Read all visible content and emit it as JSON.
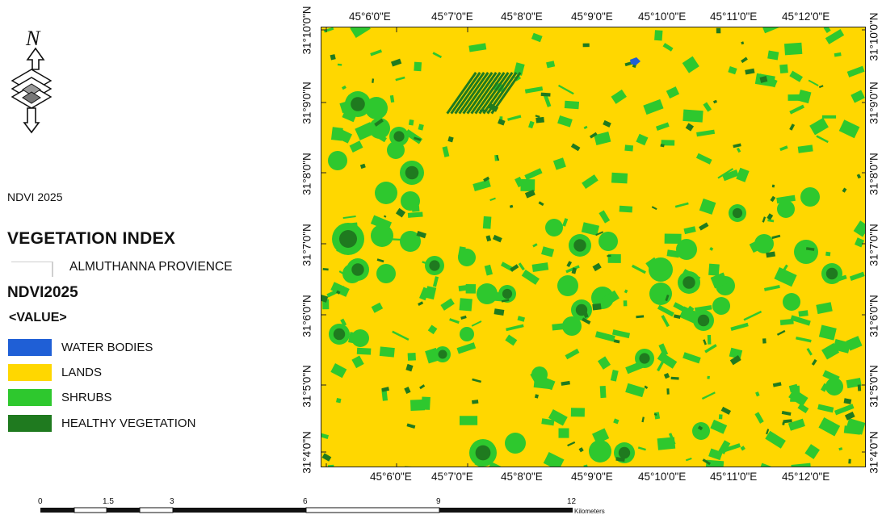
{
  "north_arrow": {
    "letter": "N",
    "icon": "north-arrow-icon"
  },
  "legend": {
    "title": "NDVI 2025",
    "heading": "VEGETATION INDEX",
    "boundary_label": "ALMUTHANNA PROVIENCE",
    "layer_name": "NDVI2025",
    "value_field": "<VALUE>",
    "classes": [
      {
        "label": "WATER BODIES",
        "color": "#1f5fd6"
      },
      {
        "label": "LANDS",
        "color": "#ffd700"
      },
      {
        "label": "SHRUBS",
        "color": "#2ec82e"
      },
      {
        "label": "HEALTHY VEGETATION",
        "color": "#1f7a1f"
      }
    ]
  },
  "graticule": {
    "longitudes": [
      "45°6'0\"E",
      "45°7'0\"E",
      "45°8'0\"E",
      "45°9'0\"E",
      "45°10'0\"E",
      "45°11'0\"E",
      "45°12'0\"E"
    ],
    "latitudes": [
      "31°10'0\"N",
      "31°9'0\"N",
      "31°8'0\"N",
      "31°7'0\"N",
      "31°6'0\"N",
      "31°5'0\"N",
      "31°4'0\"N"
    ]
  },
  "scale_bar": {
    "ticks": [
      "0",
      "1.5",
      "3",
      "6",
      "9",
      "12"
    ],
    "unit": "Kilometers"
  },
  "colors": {
    "lands": "#ffd700",
    "shrubs": "#2ec82e",
    "healthy": "#1f7a1f",
    "water": "#1f5fd6"
  }
}
